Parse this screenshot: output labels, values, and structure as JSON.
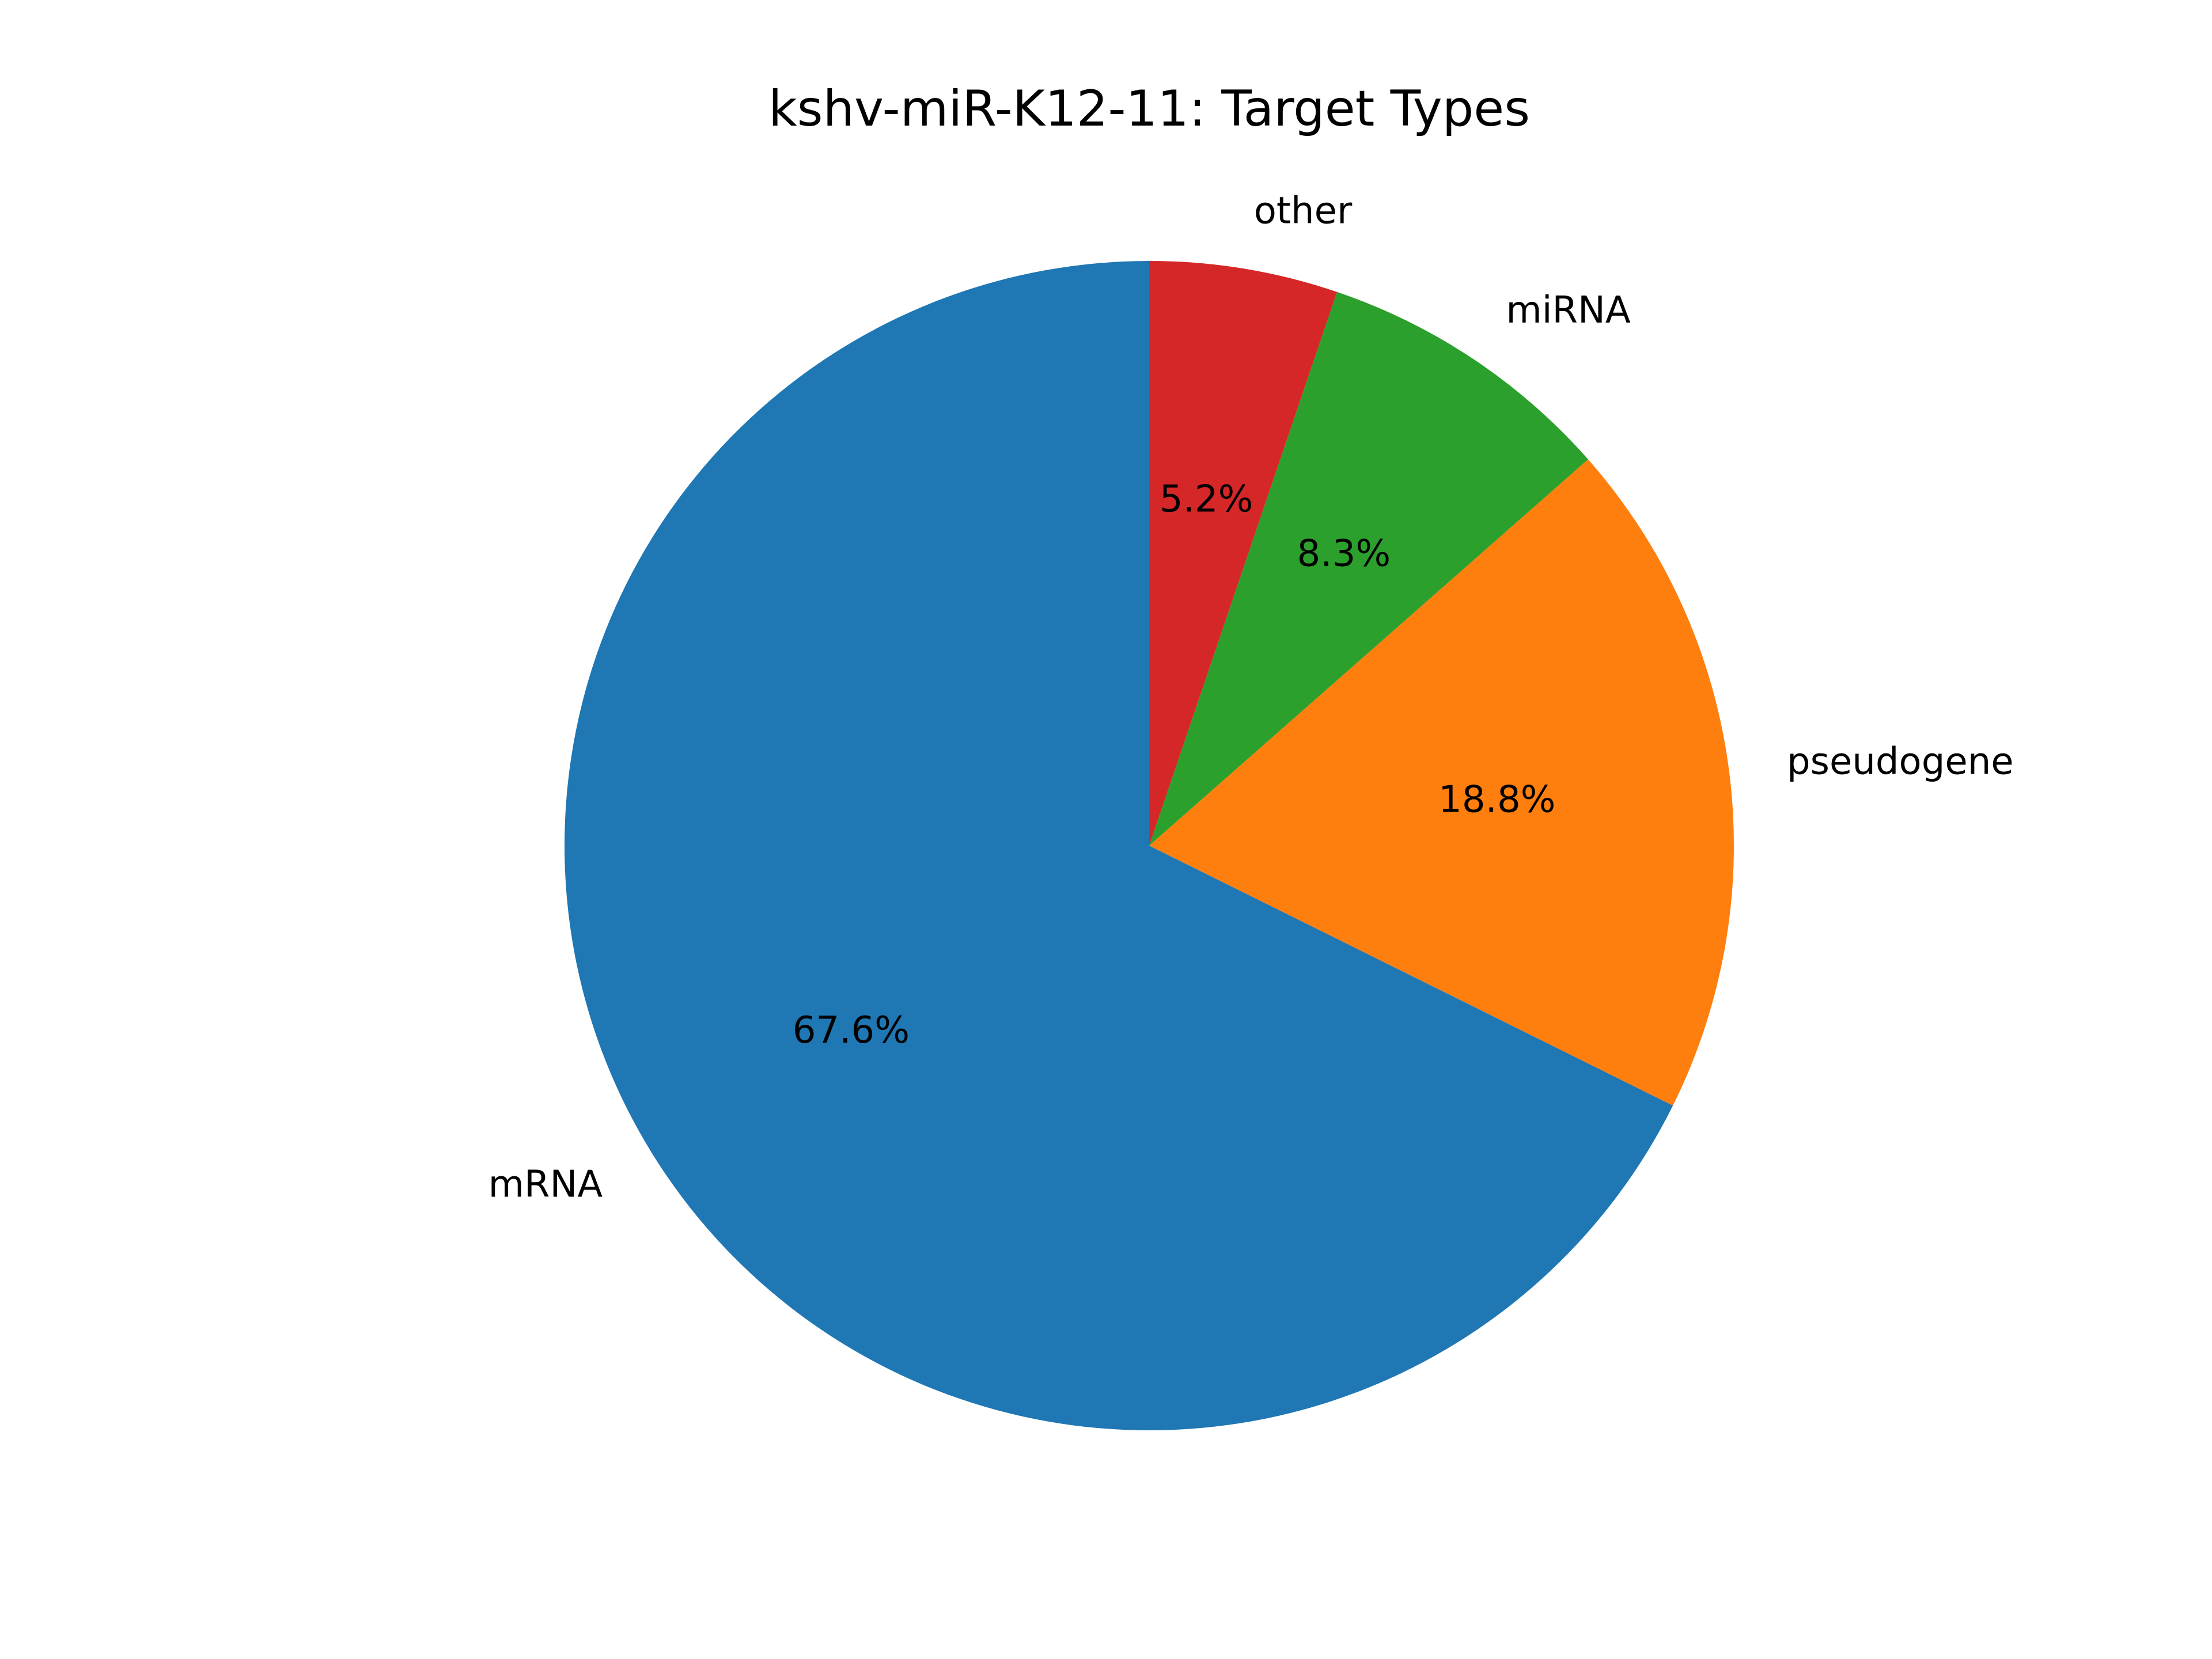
{
  "chart_data": {
    "type": "pie",
    "title": "kshv-miR-K12-11: Target Types",
    "start_angle_deg": 90,
    "direction": "counterclockwise",
    "slices": [
      {
        "label": "mRNA",
        "value": 67.6,
        "pct_label": "67.6%",
        "color": "#1f77b4"
      },
      {
        "label": "pseudogene",
        "value": 18.8,
        "pct_label": "18.8%",
        "color": "#ff7f0e"
      },
      {
        "label": "miRNA",
        "value": 8.3,
        "pct_label": "8.3%",
        "color": "#2ca02c"
      },
      {
        "label": "other",
        "value": 5.2,
        "pct_label": "5.2%",
        "color": "#d62728"
      }
    ]
  }
}
